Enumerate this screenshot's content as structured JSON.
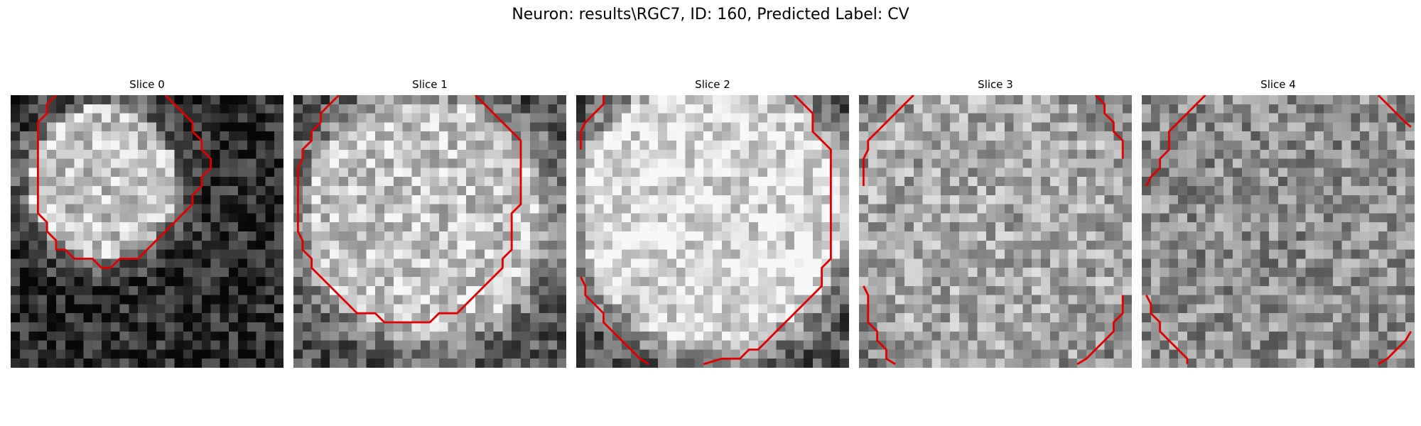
{
  "figure": {
    "suptitle": "Neuron: results\\RGC7, ID: 160, Predicted Label: CV",
    "colors": {
      "contour": "#e00000",
      "background": "#ffffff"
    },
    "panels": [
      {
        "title": "Slice 0",
        "mean_gray": 0.42
      },
      {
        "title": "Slice 1",
        "mean_gray": 0.62
      },
      {
        "title": "Slice 2",
        "mean_gray": 0.68
      },
      {
        "title": "Slice 3",
        "mean_gray": 0.6
      },
      {
        "title": "Slice 4",
        "mean_gray": 0.55
      }
    ]
  }
}
